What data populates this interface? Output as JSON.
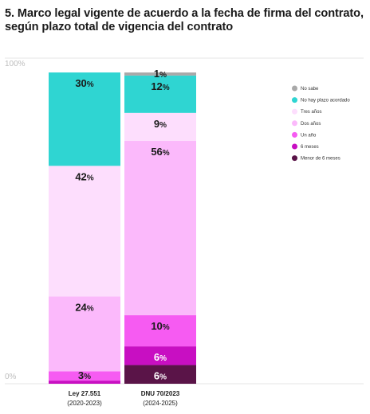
{
  "title": {
    "line1": "5. Marco legal vigente de acuerdo a la fecha de firma del contrato,",
    "line2": "según plazo total de vigencia del contrato"
  },
  "chart_data": {
    "type": "bar",
    "stacked": true,
    "normalized_100": true,
    "ylim": [
      0,
      100
    ],
    "y_ticks": [
      "0%",
      "100%"
    ],
    "grid": true,
    "legend_position": "right",
    "categories": [
      {
        "name": "Ley 27.551",
        "sub": "(2020-2023)"
      },
      {
        "name": "DNU 70/2023",
        "sub": "(2024-2025)"
      }
    ],
    "series": [
      {
        "name": "Menor de 6 meses",
        "color": "#5a1448",
        "values": [
          0,
          6
        ],
        "labels": [
          "",
          "6"
        ]
      },
      {
        "name": "6 meses",
        "color": "#c80fc2",
        "values": [
          1,
          6
        ],
        "labels": [
          "",
          "6"
        ]
      },
      {
        "name": "Un año",
        "color": "#f65bf2",
        "values": [
          3,
          10
        ],
        "labels": [
          "3",
          "10"
        ]
      },
      {
        "name": "Dos años",
        "color": "#fbb9fb",
        "values": [
          24,
          56
        ],
        "labels": [
          "24",
          "56"
        ]
      },
      {
        "name": "Tres años",
        "color": "#fddefd",
        "values": [
          42,
          9
        ],
        "labels": [
          "42",
          "9"
        ]
      },
      {
        "name": "No hay plazo acordado",
        "color": "#2fd5d2",
        "values": [
          30,
          12
        ],
        "labels": [
          "30",
          "12"
        ]
      },
      {
        "name": "No sabe",
        "color": "#a9a9a9",
        "values": [
          0,
          1
        ],
        "labels": [
          "",
          "1"
        ]
      }
    ],
    "value_suffix": "%"
  }
}
